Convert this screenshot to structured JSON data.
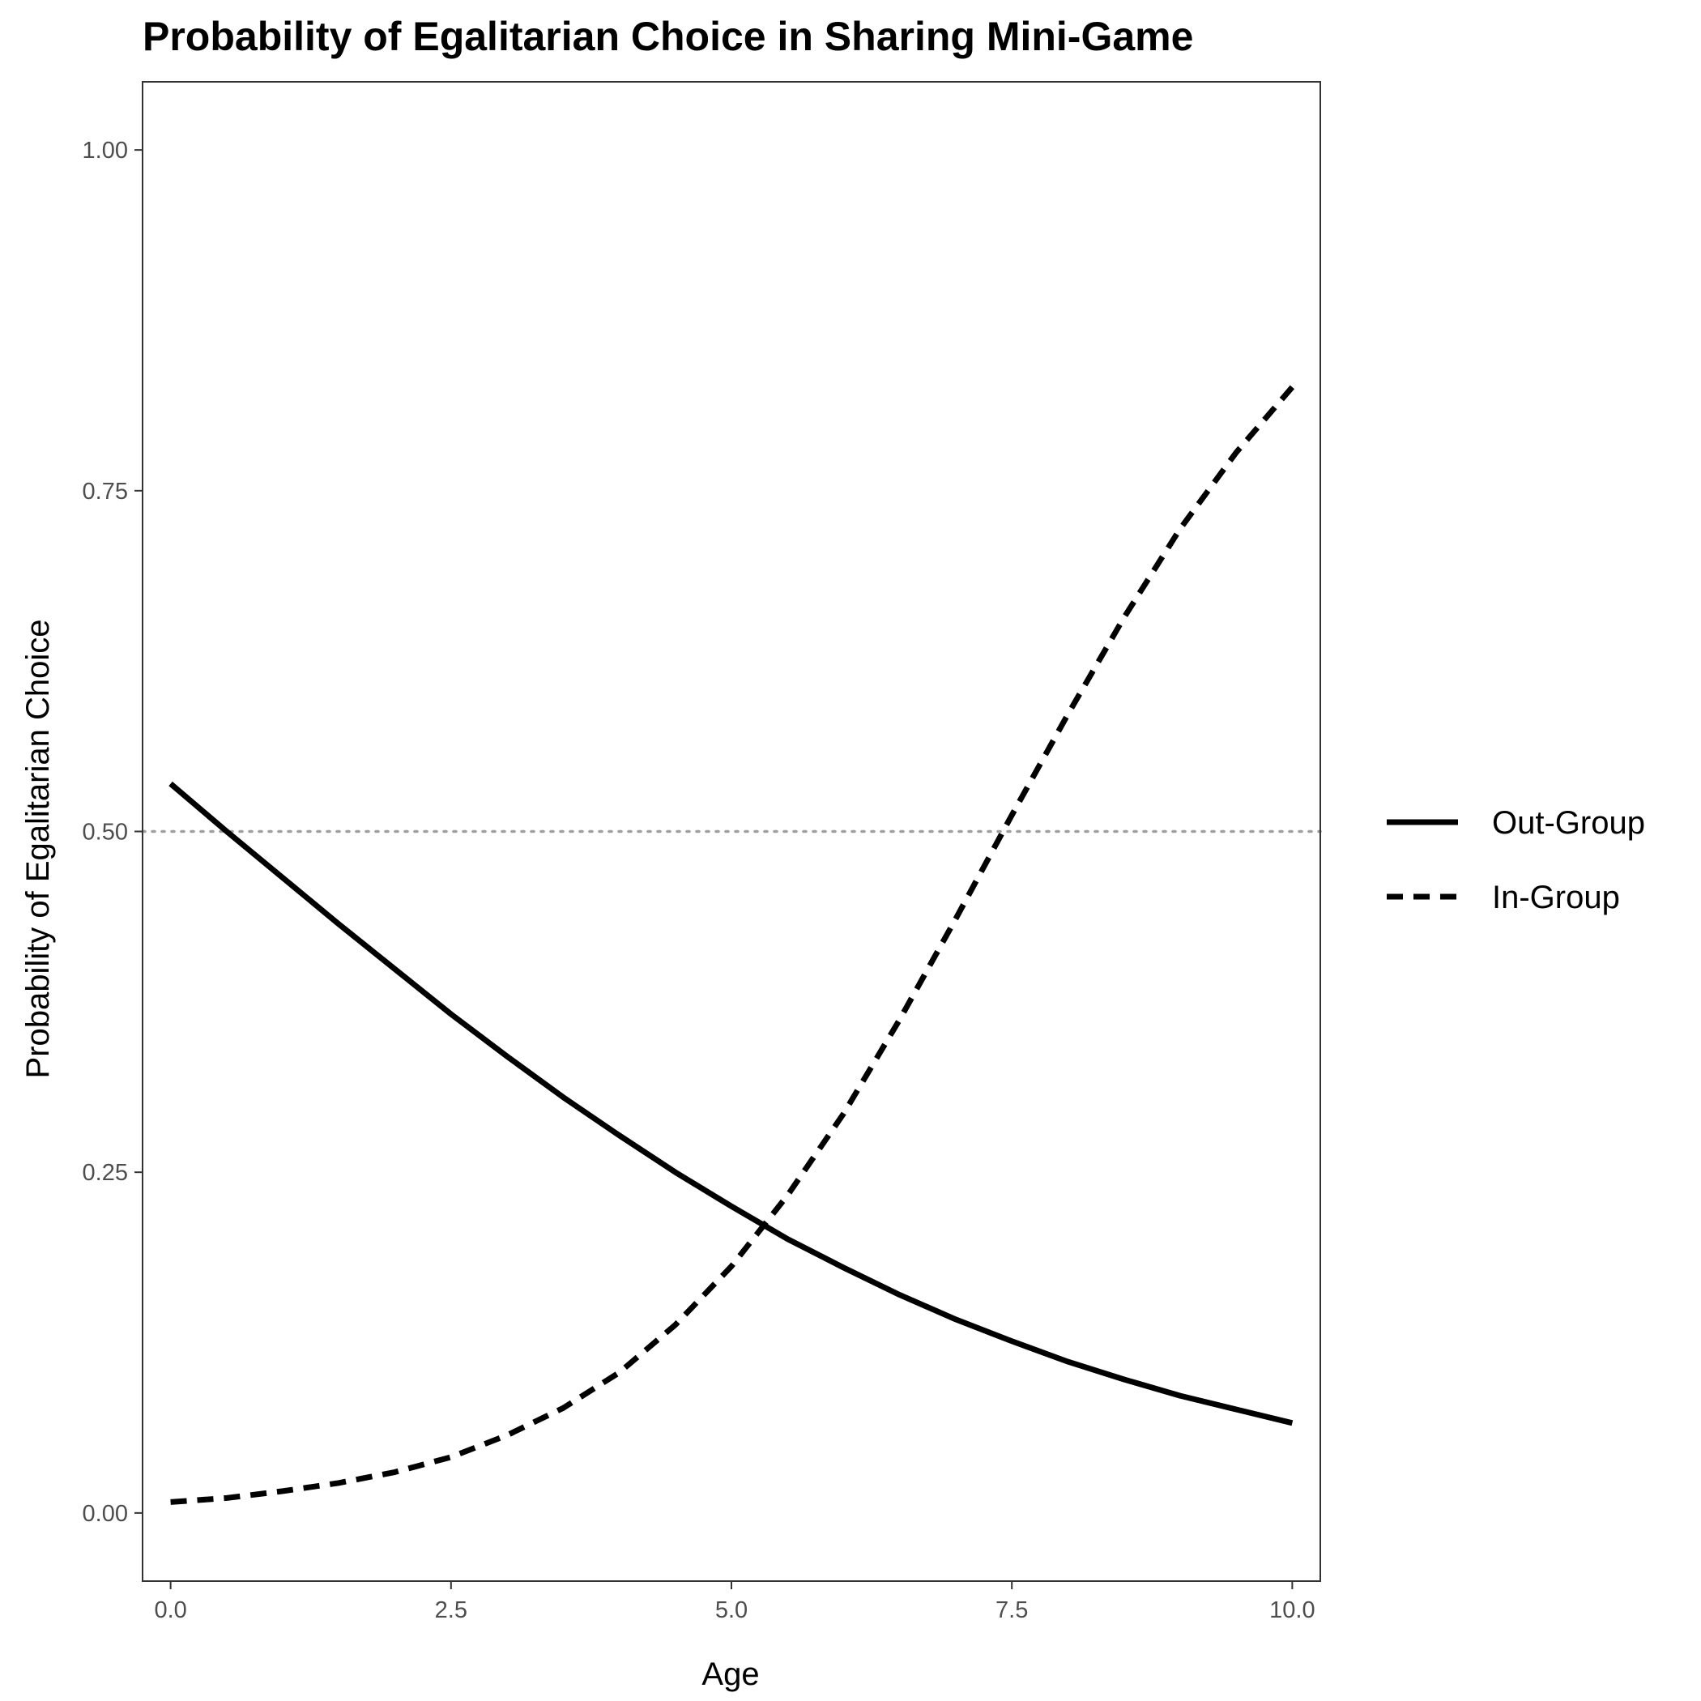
{
  "chart_data": {
    "type": "line",
    "title": "Probability of Egalitarian Choice in Sharing Mini-Game",
    "xlabel": "Age",
    "ylabel": "Probability of Egalitarian Choice",
    "xlim": [
      -0.25,
      10.25
    ],
    "ylim": [
      -0.05,
      1.05
    ],
    "x_ticks": [
      0,
      2.5,
      5,
      7.5,
      10
    ],
    "x_tick_labels": [
      "0.0",
      "2.5",
      "5.0",
      "7.5",
      "10.0"
    ],
    "y_ticks": [
      0,
      0.25,
      0.5,
      0.75,
      1
    ],
    "y_tick_labels": [
      "0.00",
      "0.25",
      "0.50",
      "0.75",
      "1.00"
    ],
    "grid": false,
    "legend_position": "right",
    "reference_line": {
      "y": 0.5,
      "style": "dotted",
      "color": "#a0a0a0"
    },
    "series": [
      {
        "name": "Out-Group",
        "line_style": "solid",
        "color": "#000000",
        "x": [
          0,
          0.5,
          1,
          1.5,
          2,
          2.5,
          3,
          3.5,
          4,
          4.5,
          5,
          5.5,
          6,
          6.5,
          7,
          7.5,
          8,
          8.5,
          9,
          9.5,
          10
        ],
        "y": [
          0.535,
          0.5,
          0.466,
          0.432,
          0.399,
          0.366,
          0.335,
          0.305,
          0.277,
          0.25,
          0.225,
          0.201,
          0.18,
          0.16,
          0.142,
          0.126,
          0.111,
          0.098,
          0.086,
          0.076,
          0.066
        ]
      },
      {
        "name": "In-Group",
        "line_style": "dashed",
        "color": "#000000",
        "x": [
          0,
          0.5,
          1,
          1.5,
          2,
          2.5,
          3,
          3.5,
          4,
          4.5,
          5,
          5.5,
          6,
          6.5,
          7,
          7.5,
          8,
          8.5,
          9,
          9.5,
          10
        ],
        "y": [
          0.008,
          0.011,
          0.016,
          0.022,
          0.03,
          0.041,
          0.057,
          0.077,
          0.103,
          0.138,
          0.181,
          0.233,
          0.293,
          0.362,
          0.436,
          0.512,
          0.586,
          0.657,
          0.722,
          0.778,
          0.826
        ]
      }
    ]
  }
}
